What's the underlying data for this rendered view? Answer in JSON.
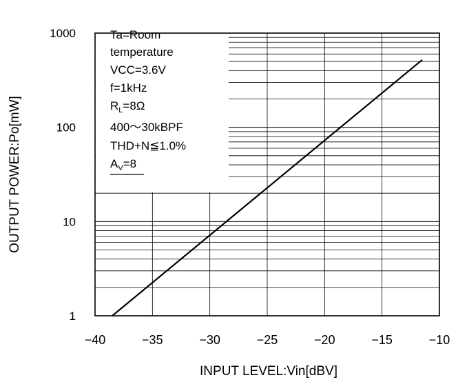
{
  "chart_data": {
    "type": "line",
    "title": "",
    "xlabel": "INPUT LEVEL:Vin[dBV]",
    "ylabel": "OUTPUT POWER:Po[mW]",
    "xlim": [
      -40,
      -10
    ],
    "ylim": [
      1,
      1000
    ],
    "yscale": "log",
    "grid": true,
    "x_ticks": [
      "−40",
      "−35",
      "−30",
      "−25",
      "−20",
      "−15",
      "−10"
    ],
    "y_ticks": [
      "1",
      "10",
      "100",
      "1000"
    ],
    "series": [
      {
        "x": [
          -38.5,
          -11.5
        ],
        "y": [
          1.0,
          520
        ]
      }
    ],
    "annotation": {
      "ta": "Ta=Room",
      "ta2": "temperature",
      "vcc": "VCC=3.6V",
      "freq": "f=1kHz",
      "rl_prefix": "R",
      "rl_sub": "L",
      "rl_value": "=8Ω",
      "bpf": "400〜30kBPF",
      "thd": "THD+N≦1.0%",
      "av_prefix": "A",
      "av_sub": "V",
      "av_value": "=8"
    }
  }
}
